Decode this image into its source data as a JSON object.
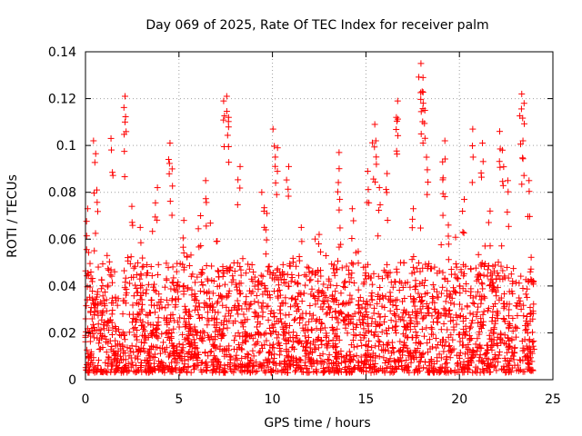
{
  "chart_data": {
    "type": "scatter",
    "title": "Day 069 of 2025, Rate Of TEC Index for receiver palm",
    "xlabel": "GPS time / hours",
    "ylabel": "ROTI / TECUs",
    "xlim": [
      0,
      25
    ],
    "ylim": [
      0,
      0.14
    ],
    "x_ticks": [
      0,
      5,
      10,
      15,
      20,
      25
    ],
    "x_tick_labels": [
      "0",
      "5",
      "10",
      "15",
      "20",
      "25"
    ],
    "y_ticks": [
      0,
      0.02,
      0.04,
      0.06,
      0.08,
      0.1,
      0.12,
      0.14
    ],
    "y_tick_labels": [
      "0",
      "0.02",
      "0.04",
      "0.06",
      "0.08",
      "0.1",
      "0.12",
      "0.14"
    ],
    "grid": true,
    "marker": "+",
    "series": [
      {
        "name": "ROTI",
        "color": "#ff0000",
        "x_range": [
          0,
          24
        ],
        "typical_range": [
          0.003,
          0.05
        ],
        "notable_points": [
          {
            "x": 0.1,
            "y": 0.073
          },
          {
            "x": 0.5,
            "y": 0.102
          },
          {
            "x": 0.6,
            "y": 0.081
          },
          {
            "x": 1.4,
            "y": 0.103
          },
          {
            "x": 2.1,
            "y": 0.121
          },
          {
            "x": 2.1,
            "y": 0.11
          },
          {
            "x": 2.5,
            "y": 0.074
          },
          {
            "x": 3.0,
            "y": 0.065
          },
          {
            "x": 3.8,
            "y": 0.082
          },
          {
            "x": 4.5,
            "y": 0.101
          },
          {
            "x": 4.6,
            "y": 0.09
          },
          {
            "x": 5.2,
            "y": 0.068
          },
          {
            "x": 6.1,
            "y": 0.07
          },
          {
            "x": 6.5,
            "y": 0.085
          },
          {
            "x": 7.4,
            "y": 0.119
          },
          {
            "x": 7.6,
            "y": 0.121
          },
          {
            "x": 7.7,
            "y": 0.112
          },
          {
            "x": 8.2,
            "y": 0.091
          },
          {
            "x": 9.5,
            "y": 0.08
          },
          {
            "x": 9.7,
            "y": 0.071
          },
          {
            "x": 10.1,
            "y": 0.107
          },
          {
            "x": 10.2,
            "y": 0.099
          },
          {
            "x": 10.8,
            "y": 0.091
          },
          {
            "x": 11.5,
            "y": 0.065
          },
          {
            "x": 12.5,
            "y": 0.062
          },
          {
            "x": 13.5,
            "y": 0.097
          },
          {
            "x": 13.6,
            "y": 0.077
          },
          {
            "x": 14.3,
            "y": 0.073
          },
          {
            "x": 15.1,
            "y": 0.089
          },
          {
            "x": 15.4,
            "y": 0.109
          },
          {
            "x": 15.5,
            "y": 0.102
          },
          {
            "x": 15.7,
            "y": 0.082
          },
          {
            "x": 16.1,
            "y": 0.088
          },
          {
            "x": 16.6,
            "y": 0.112
          },
          {
            "x": 16.7,
            "y": 0.119
          },
          {
            "x": 17.5,
            "y": 0.073
          },
          {
            "x": 17.9,
            "y": 0.135
          },
          {
            "x": 18.0,
            "y": 0.129
          },
          {
            "x": 18.0,
            "y": 0.123
          },
          {
            "x": 18.1,
            "y": 0.115
          },
          {
            "x": 18.3,
            "y": 0.095
          },
          {
            "x": 19.2,
            "y": 0.102
          },
          {
            "x": 19.1,
            "y": 0.093
          },
          {
            "x": 19.4,
            "y": 0.066
          },
          {
            "x": 20.2,
            "y": 0.077
          },
          {
            "x": 20.7,
            "y": 0.107
          },
          {
            "x": 21.2,
            "y": 0.101
          },
          {
            "x": 21.6,
            "y": 0.072
          },
          {
            "x": 22.2,
            "y": 0.106
          },
          {
            "x": 22.3,
            "y": 0.098
          },
          {
            "x": 22.6,
            "y": 0.085
          },
          {
            "x": 23.3,
            "y": 0.122
          },
          {
            "x": 23.4,
            "y": 0.118
          },
          {
            "x": 23.4,
            "y": 0.102
          },
          {
            "x": 23.7,
            "y": 0.085
          }
        ]
      }
    ]
  }
}
